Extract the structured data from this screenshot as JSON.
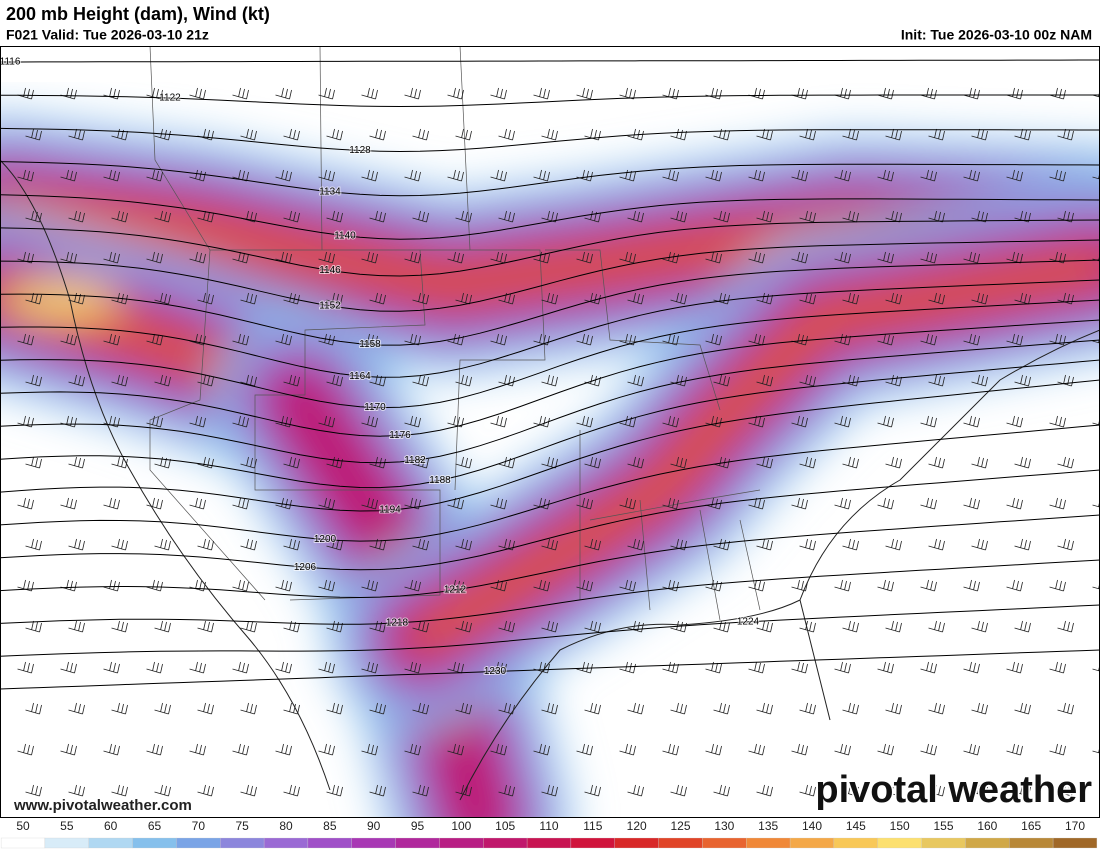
{
  "header": {
    "title": "200 mb Height (dam), Wind (kt)",
    "valid": "F021 Valid: Tue 2026-03-10 21z",
    "init": "Init: Tue 2026-03-10 00z NAM"
  },
  "map": {
    "contours": [
      1116,
      1122,
      1128,
      1134,
      1140,
      1146,
      1152,
      1158,
      1164,
      1170,
      1176,
      1182,
      1188,
      1194,
      1200,
      1206,
      1212,
      1218,
      1224,
      1230
    ]
  },
  "colorbar": {
    "ticks": [
      50,
      55,
      60,
      65,
      70,
      75,
      80,
      85,
      90,
      95,
      100,
      105,
      110,
      115,
      120,
      125,
      130,
      135,
      140,
      145,
      150,
      155,
      160,
      165,
      170
    ],
    "colors": [
      "#ffffff",
      "#d8ecf8",
      "#b0d8f2",
      "#86c0ec",
      "#7aa4e6",
      "#8c86dc",
      "#9a6ad4",
      "#a050c8",
      "#a838b4",
      "#b0289c",
      "#b81e84",
      "#c0186c",
      "#c81452",
      "#d0143c",
      "#d82828",
      "#e04428",
      "#e86430",
      "#f08838",
      "#f4a848",
      "#f8c858",
      "#fce070",
      "#e8c860",
      "#d0a848",
      "#b88838",
      "#a06828"
    ]
  },
  "footer": {
    "website": "www.pivotalweather.com",
    "logo": "pivotal weather"
  }
}
